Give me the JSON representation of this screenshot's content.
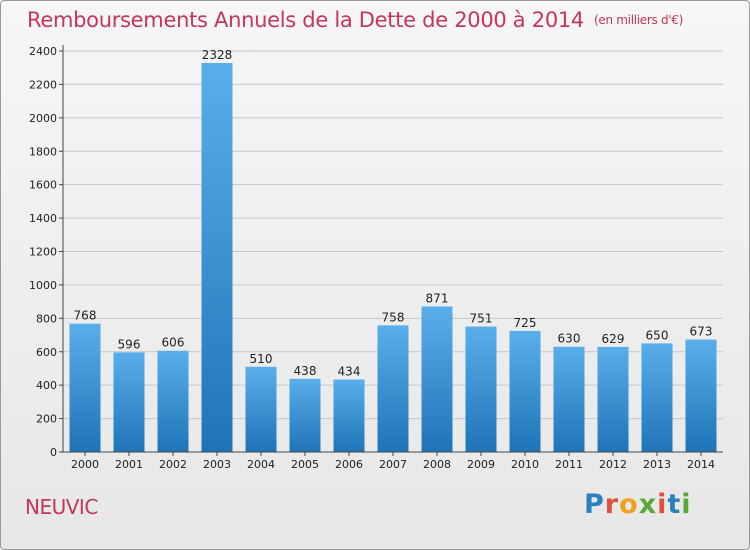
{
  "header": {
    "title": "Remboursements Annuels de la Dette de 2000 à 2014",
    "subtitle": "(en milliers d'€)"
  },
  "footer": {
    "town": "NEUVIC",
    "logo": "Proxiti",
    "logo_colors": [
      "#2a7fbf",
      "#e0503a",
      "#f0a020",
      "#5aa83a",
      "#e0503a",
      "#2a7fbf",
      "#5aa83a"
    ]
  },
  "colors": {
    "title": "#c2375a",
    "bar_light": "#5aaeea",
    "bar_dark": "#1f74b8",
    "grid": "#c8c8c8"
  },
  "chart_data": {
    "type": "bar",
    "title": "Remboursements Annuels de la Dette de 2000 à 2014",
    "xlabel": "",
    "ylabel": "",
    "categories": [
      "2000",
      "2001",
      "2002",
      "2003",
      "2004",
      "2005",
      "2006",
      "2007",
      "2008",
      "2009",
      "2010",
      "2011",
      "2012",
      "2013",
      "2014"
    ],
    "values": [
      768,
      596,
      606,
      2328,
      510,
      438,
      434,
      758,
      871,
      751,
      725,
      630,
      629,
      650,
      673
    ],
    "ylim": [
      0,
      2400
    ],
    "yticks": [
      0,
      200,
      400,
      600,
      800,
      1000,
      1200,
      1400,
      1600,
      1800,
      2000,
      2200,
      2400
    ],
    "grid": true,
    "data_labels": true
  }
}
